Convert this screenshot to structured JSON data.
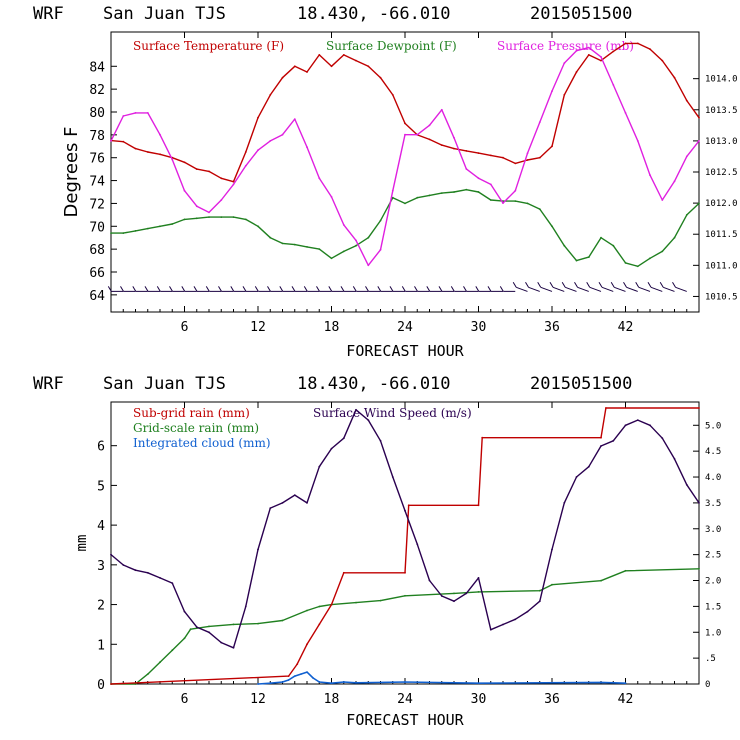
{
  "charts": [
    {
      "header": {
        "model": "WRF",
        "station": "San Juan TJS",
        "coords": "18.430, -66.010",
        "init": "2015051500"
      },
      "xlabel": "FORECAST HOUR",
      "ylabel": "Degrees F",
      "legend": [
        "Surface Temperature (F)",
        "Surface Dewpoint (F)",
        "Surface Pressure (mb)"
      ],
      "x_ticks": [
        "6",
        "12",
        "18",
        "24",
        "30",
        "36",
        "42"
      ],
      "y_ticks": [
        "64",
        "66",
        "68",
        "70",
        "72",
        "74",
        "76",
        "78",
        "80",
        "82",
        "84"
      ],
      "y2_ticks": [
        "1010.5",
        "1011.0",
        "1011.5",
        "1012.0",
        "1012.5",
        "1013.0",
        "1013.5",
        "1014.0"
      ]
    },
    {
      "header": {
        "model": "WRF",
        "station": "San Juan TJS",
        "coords": "18.430, -66.010",
        "init": "2015051500"
      },
      "xlabel": "FORECAST HOUR",
      "ylabel": "mm",
      "legend": [
        "Sub-grid rain (mm)",
        "Surface Wind Speed (m/s)",
        "Grid-scale rain (mm)",
        "Integrated cloud (mm)"
      ],
      "x_ticks": [
        "6",
        "12",
        "18",
        "24",
        "30",
        "36",
        "42"
      ],
      "y_ticks": [
        "0",
        "1",
        "2",
        "3",
        "4",
        "5",
        "6"
      ],
      "y2_ticks": [
        "0",
        ".5",
        "1.0",
        "1.5",
        "2.0",
        "2.5",
        "3.0",
        "3.5",
        "4.0",
        "4.5",
        "5.0"
      ]
    }
  ],
  "colors": {
    "temperature": "#c00000",
    "dewpoint": "#208020",
    "pressure": "#e020e0",
    "subgrid_rain": "#c00000",
    "wind_speed": "#2a0050",
    "gridscale_rain": "#208020",
    "cloud": "#1060d0",
    "barbs": "#180040"
  },
  "chart_data": [
    {
      "type": "line",
      "title": "WRF San Juan TJS 18.430, -66.010 2015051500",
      "xlabel": "FORECAST HOUR",
      "ylabel": "Degrees F",
      "xlim": [
        0,
        48
      ],
      "ylim": [
        62.5,
        87
      ],
      "y2lim": [
        1010.25,
        1014.75
      ],
      "grid": false,
      "legend_position": "top",
      "series": [
        {
          "name": "Surface Temperature (F)",
          "axis": "left",
          "x": [
            0,
            1,
            2,
            3,
            4,
            5,
            6,
            7,
            8,
            9,
            10,
            11,
            12,
            13,
            14,
            15,
            16,
            17,
            18,
            19,
            20,
            21,
            22,
            23,
            24,
            25,
            26,
            27,
            28,
            29,
            30,
            31,
            32,
            33,
            34,
            35,
            36,
            37,
            38,
            39,
            40,
            41,
            42,
            43,
            44,
            45,
            46,
            47,
            48
          ],
          "y": [
            77.5,
            77.4,
            76.8,
            76.5,
            76.3,
            76,
            75.6,
            75,
            74.8,
            74.2,
            73.9,
            76.5,
            79.5,
            81.5,
            83,
            84,
            83.5,
            85,
            84,
            85,
            84.5,
            84,
            83,
            81.5,
            79,
            78,
            77.6,
            77.1,
            76.8,
            76.6,
            76.4,
            76.2,
            76,
            75.5,
            75.8,
            76,
            77,
            81.5,
            83.5,
            85,
            84.5,
            85.3,
            86,
            86,
            85.5,
            84.5,
            83,
            81,
            79.5
          ]
        },
        {
          "name": "Surface Dewpoint (F)",
          "axis": "left",
          "x": [
            0,
            1,
            2,
            3,
            4,
            5,
            6,
            7,
            8,
            9,
            10,
            11,
            12,
            13,
            14,
            15,
            16,
            17,
            18,
            19,
            20,
            21,
            22,
            23,
            24,
            25,
            26,
            27,
            28,
            29,
            30,
            31,
            32,
            33,
            34,
            35,
            36,
            37,
            38,
            39,
            40,
            41,
            42,
            43,
            44,
            45,
            46,
            47,
            48
          ],
          "y": [
            69.4,
            69.4,
            69.6,
            69.8,
            70,
            70.2,
            70.6,
            70.7,
            70.8,
            70.8,
            70.8,
            70.6,
            70,
            69,
            68.5,
            68.4,
            68.2,
            68,
            67.2,
            67.8,
            68.3,
            69,
            70.5,
            72.5,
            72,
            72.5,
            72.7,
            72.9,
            73,
            73.2,
            73,
            72.3,
            72.2,
            72.2,
            72,
            71.5,
            70,
            68.3,
            67,
            67.3,
            69,
            68.3,
            66.8,
            66.5,
            67.2,
            67.8,
            69,
            71,
            72
          ]
        },
        {
          "name": "Surface Pressure (mb)",
          "axis": "right",
          "x": [
            0,
            1,
            2,
            3,
            4,
            5,
            6,
            7,
            8,
            9,
            10,
            11,
            12,
            13,
            14,
            15,
            16,
            17,
            18,
            19,
            20,
            21,
            22,
            23,
            24,
            25,
            26,
            27,
            28,
            29,
            30,
            31,
            32,
            33,
            34,
            35,
            36,
            37,
            38,
            39,
            40,
            41,
            42,
            43,
            44,
            45,
            46,
            47,
            48
          ],
          "y": [
            1013.0,
            1013.4,
            1013.45,
            1013.45,
            1013.1,
            1012.7,
            1012.2,
            1011.95,
            1011.85,
            1012.05,
            1012.3,
            1012.6,
            1012.85,
            1013.0,
            1013.1,
            1013.35,
            1012.9,
            1012.4,
            1012.1,
            1011.65,
            1011.4,
            1011.0,
            1011.25,
            1012.2,
            1013.1,
            1013.1,
            1013.25,
            1013.5,
            1013.05,
            1012.55,
            1012.4,
            1012.3,
            1012.0,
            1012.2,
            1012.8,
            1013.3,
            1013.8,
            1014.25,
            1014.45,
            1014.5,
            1014.35,
            1013.9,
            1013.45,
            1013.0,
            1012.45,
            1012.05,
            1012.35,
            1012.75,
            1013.0
          ]
        },
        {
          "name": "Wind barbs",
          "axis": "left",
          "x": [
            1,
            2,
            3,
            4,
            5,
            6,
            7,
            8,
            9,
            10,
            11,
            12,
            13,
            14,
            15,
            16,
            17,
            18,
            19,
            20,
            21,
            22,
            23,
            24,
            25,
            26,
            27,
            28,
            29,
            30,
            31,
            32,
            33,
            34,
            35,
            36,
            37,
            38,
            39,
            40,
            41,
            42,
            43,
            44,
            45,
            46,
            47
          ],
          "y": [
            64.3,
            64.3,
            64.3,
            64.3,
            64.3,
            64.3,
            64.3,
            64.3,
            64.3,
            64.3,
            64.3,
            64.3,
            64.3,
            64.3,
            64.3,
            64.3,
            64.3,
            64.3,
            64.3,
            64.3,
            64.3,
            64.3,
            64.3,
            64.3,
            64.3,
            64.3,
            64.3,
            64.3,
            64.3,
            64.3,
            64.3,
            64.3,
            64.3,
            64.3,
            64.3,
            64.3,
            64.3,
            64.3,
            64.3,
            64.3,
            64.3,
            64.3,
            64.3,
            64.3,
            64.3,
            64.3,
            64.3
          ]
        }
      ]
    },
    {
      "type": "line",
      "title": "WRF San Juan TJS 18.430, -66.010 2015051500",
      "xlabel": "FORECAST HOUR",
      "ylabel": "mm",
      "xlim": [
        0,
        48
      ],
      "ylim": [
        0,
        7.1
      ],
      "y2lim": [
        0,
        5.45
      ],
      "grid": false,
      "legend_position": "top-left",
      "series": [
        {
          "name": "Sub-grid rain (mm)",
          "axis": "left",
          "x": [
            0,
            14.5,
            15.2,
            16,
            17,
            18,
            19,
            24,
            24.3,
            30,
            30.3,
            40,
            40.4,
            48
          ],
          "y": [
            0,
            0.2,
            0.5,
            1.0,
            1.5,
            2.0,
            2.8,
            2.8,
            4.5,
            4.5,
            6.2,
            6.2,
            6.95,
            6.95
          ]
        },
        {
          "name": "Surface Wind Speed (m/s)",
          "axis": "right",
          "x": [
            0,
            1,
            2,
            3,
            4,
            5,
            6,
            7,
            8,
            9,
            10,
            11,
            12,
            13,
            14,
            15,
            16,
            17,
            18,
            19,
            20,
            21,
            22,
            23,
            24,
            25,
            26,
            27,
            28,
            29,
            30,
            31,
            32,
            33,
            34,
            35,
            36,
            37,
            38,
            39,
            40,
            41,
            42,
            43,
            44,
            45,
            46,
            47,
            48
          ],
          "y": [
            2.5,
            2.3,
            2.2,
            2.15,
            2.05,
            1.95,
            1.4,
            1.1,
            1.0,
            0.8,
            0.7,
            1.5,
            2.6,
            3.4,
            3.5,
            3.65,
            3.5,
            4.2,
            4.55,
            4.75,
            5.3,
            5.1,
            4.7,
            4.0,
            3.35,
            2.7,
            2.0,
            1.7,
            1.6,
            1.75,
            2.05,
            1.05,
            1.15,
            1.25,
            1.4,
            1.6,
            2.6,
            3.5,
            4.0,
            4.2,
            4.6,
            4.7,
            5.0,
            5.1,
            5.0,
            4.75,
            4.35,
            3.85,
            3.5
          ]
        },
        {
          "name": "Grid-scale rain (mm)",
          "axis": "left",
          "x": [
            0,
            2,
            3,
            4,
            5,
            6,
            6.5,
            8,
            10,
            12,
            14,
            16,
            17,
            18,
            20,
            22,
            24,
            28,
            30,
            35,
            36,
            40,
            42,
            48
          ],
          "y": [
            0,
            0,
            0.25,
            0.55,
            0.85,
            1.15,
            1.38,
            1.45,
            1.5,
            1.52,
            1.6,
            1.85,
            1.95,
            2.0,
            2.05,
            2.1,
            2.22,
            2.28,
            2.32,
            2.35,
            2.5,
            2.6,
            2.85,
            2.9
          ]
        },
        {
          "name": "Integrated cloud (mm)",
          "axis": "left",
          "x": [
            12,
            13,
            14,
            14.5,
            15,
            15.5,
            16,
            16.5,
            17,
            18,
            19,
            20,
            24,
            30,
            40,
            42
          ],
          "y": [
            0,
            0.02,
            0.05,
            0.1,
            0.2,
            0.25,
            0.3,
            0.15,
            0.05,
            0.02,
            0.05,
            0.03,
            0.05,
            0.02,
            0.04,
            0.02
          ]
        }
      ]
    }
  ]
}
